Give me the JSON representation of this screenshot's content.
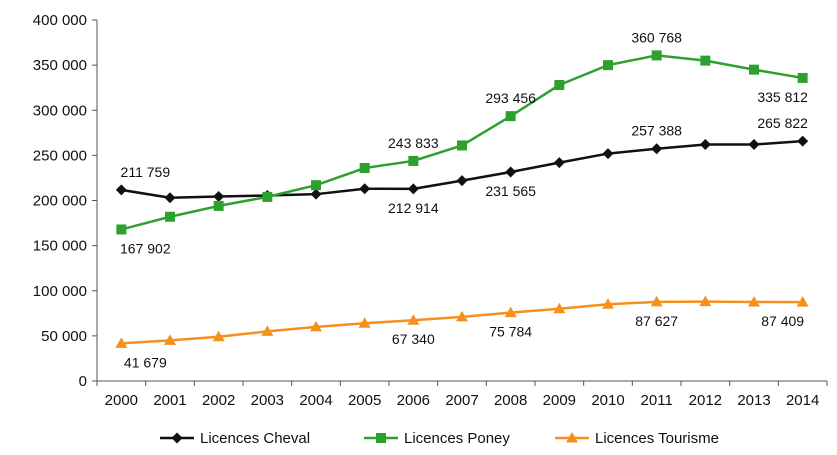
{
  "chart_data": {
    "type": "line",
    "title": "",
    "xlabel": "",
    "ylabel": "",
    "categories": [
      "2000",
      "2001",
      "2002",
      "2003",
      "2004",
      "2005",
      "2006",
      "2007",
      "2008",
      "2009",
      "2010",
      "2011",
      "2012",
      "2013",
      "2014"
    ],
    "ylim": [
      0,
      400000
    ],
    "y_ticks": [
      0,
      50000,
      100000,
      150000,
      200000,
      250000,
      300000,
      350000,
      400000
    ],
    "y_tick_labels": [
      "0",
      "50 000",
      "100 000",
      "150 000",
      "200 000",
      "250 000",
      "300 000",
      "350 000",
      "400 000"
    ],
    "grid": false,
    "legend_position": "bottom",
    "series": [
      {
        "name": "Licences Cheval",
        "color": "#111111",
        "marker": "diamond",
        "values": [
          211759,
          203000,
          204500,
          205500,
          207000,
          213000,
          212914,
          222000,
          231565,
          242000,
          252000,
          257388,
          262000,
          262000,
          265822
        ],
        "data_labels": [
          {
            "index": 0,
            "text": "211 759",
            "position": "above"
          },
          {
            "index": 6,
            "text": "212 914",
            "position": "below"
          },
          {
            "index": 8,
            "text": "231 565",
            "position": "below"
          },
          {
            "index": 11,
            "text": "257 388",
            "position": "above"
          },
          {
            "index": 14,
            "text": "265 822",
            "position": "above"
          }
        ]
      },
      {
        "name": "Licences Poney",
        "color": "#2ea02e",
        "marker": "square",
        "values": [
          167902,
          182000,
          194000,
          204000,
          217000,
          236000,
          243833,
          261000,
          293456,
          328000,
          350000,
          360768,
          355000,
          345000,
          335812
        ],
        "data_labels": [
          {
            "index": 0,
            "text": "167 902",
            "position": "below"
          },
          {
            "index": 6,
            "text": "243 833",
            "position": "above"
          },
          {
            "index": 8,
            "text": "293 456",
            "position": "above"
          },
          {
            "index": 11,
            "text": "360 768",
            "position": "above"
          },
          {
            "index": 14,
            "text": "335 812",
            "position": "below"
          }
        ]
      },
      {
        "name": "Licences Tourisme",
        "color": "#f5901e",
        "marker": "triangle",
        "values": [
          41679,
          45000,
          49000,
          55000,
          60000,
          64000,
          67340,
          71000,
          75784,
          80000,
          85000,
          87627,
          88000,
          87500,
          87409
        ],
        "data_labels": [
          {
            "index": 0,
            "text": "41 679",
            "position": "below"
          },
          {
            "index": 6,
            "text": "67 340",
            "position": "below"
          },
          {
            "index": 8,
            "text": "75 784",
            "position": "below"
          },
          {
            "index": 11,
            "text": "87 627",
            "position": "below"
          },
          {
            "index": 14,
            "text": "87 409",
            "position": "below"
          }
        ]
      }
    ]
  }
}
